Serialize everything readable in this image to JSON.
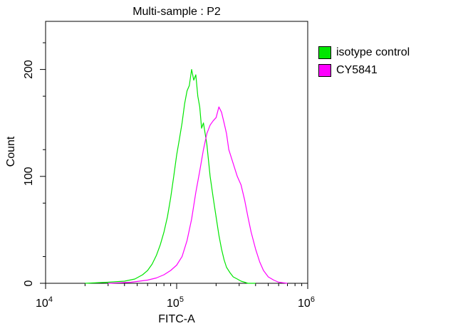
{
  "chart_data": {
    "type": "histogram",
    "title": "Multi-sample : P2",
    "xlabel": "FITC-A",
    "ylabel": "Count",
    "x_scale": "log",
    "xlim": [
      10000,
      1000000
    ],
    "ylim": [
      0,
      245
    ],
    "x_ticks": [
      {
        "value": 10000,
        "base": "10",
        "exp": "4"
      },
      {
        "value": 100000,
        "base": "10",
        "exp": "5"
      },
      {
        "value": 1000000,
        "base": "10",
        "exp": "6"
      }
    ],
    "y_ticks": [
      {
        "value": 0,
        "label": "0"
      },
      {
        "value": 100,
        "label": "100"
      },
      {
        "value": 200,
        "label": "200"
      }
    ],
    "legend_position": "right",
    "series": [
      {
        "name": "isotype control",
        "color": "#00e600",
        "x": [
          20000,
          30000,
          40000,
          48000,
          55000,
          60000,
          65000,
          70000,
          75000,
          80000,
          85000,
          90000,
          95000,
          100000,
          105000,
          110000,
          115000,
          120000,
          125000,
          130000,
          135000,
          140000,
          145000,
          150000,
          155000,
          160000,
          165000,
          170000,
          175000,
          180000,
          190000,
          200000,
          210000,
          220000,
          230000,
          240000,
          255000,
          270000,
          290000,
          310000,
          330000,
          350000,
          400000
        ],
        "y": [
          0,
          1,
          2,
          4,
          8,
          12,
          18,
          26,
          36,
          48,
          62,
          80,
          100,
          120,
          135,
          150,
          168,
          180,
          185,
          200,
          190,
          195,
          175,
          165,
          145,
          150,
          140,
          130,
          115,
          100,
          80,
          62,
          45,
          32,
          22,
          15,
          10,
          6,
          4,
          2,
          1,
          0,
          0
        ]
      },
      {
        "name": "CY5841",
        "color": "#ff00ff",
        "x": [
          30000,
          45000,
          60000,
          70000,
          80000,
          90000,
          100000,
          110000,
          120000,
          130000,
          140000,
          150000,
          160000,
          170000,
          180000,
          190000,
          200000,
          210000,
          220000,
          230000,
          240000,
          250000,
          270000,
          290000,
          310000,
          330000,
          350000,
          370000,
          400000,
          430000,
          460000,
          500000,
          550000,
          600000,
          700000
        ],
        "y": [
          0,
          1,
          3,
          5,
          8,
          12,
          17,
          25,
          40,
          60,
          85,
          105,
          125,
          140,
          148,
          152,
          155,
          165,
          160,
          150,
          140,
          125,
          112,
          100,
          92,
          78,
          62,
          48,
          32,
          20,
          12,
          6,
          3,
          1,
          0
        ]
      }
    ]
  }
}
